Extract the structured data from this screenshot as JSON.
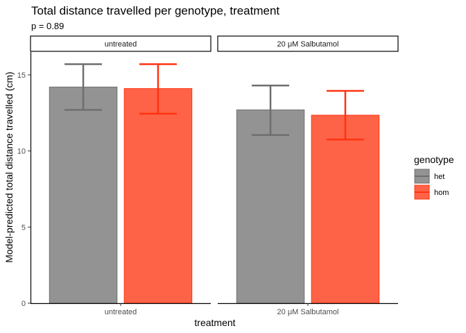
{
  "chart_data": {
    "type": "bar",
    "title": "Total distance travelled per genotype, treatment",
    "subtitle": "p = 0.89",
    "xlabel": "treatment",
    "ylabel": "Model-predicted total distance travelled (cm)",
    "ylim": [
      0,
      16.5
    ],
    "yticks": [
      0,
      5,
      10,
      15
    ],
    "grid": false,
    "legend_position": "right",
    "legend_title": "genotype",
    "panels": [
      {
        "strip": "untreated",
        "category": "untreated",
        "bars": [
          {
            "series": "het",
            "value": 14.2,
            "lower": 12.7,
            "upper": 15.7
          },
          {
            "series": "hom",
            "value": 14.1,
            "lower": 12.45,
            "upper": 15.7
          }
        ]
      },
      {
        "strip": "20 μM Salbutamol",
        "category": "20 μM Salbutamol",
        "bars": [
          {
            "series": "het",
            "value": 12.7,
            "lower": 11.05,
            "upper": 14.3
          },
          {
            "series": "hom",
            "value": 12.35,
            "lower": 10.75,
            "upper": 13.95
          }
        ]
      }
    ],
    "series": [
      {
        "name": "het",
        "fill": "#939393",
        "stroke": "#6e6e6e"
      },
      {
        "name": "hom",
        "fill": "#ff6347",
        "stroke": "#ff3311"
      }
    ]
  }
}
